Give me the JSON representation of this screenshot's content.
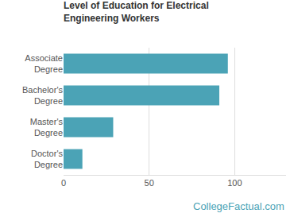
{
  "chart_data": {
    "type": "bar",
    "orientation": "horizontal",
    "title": "Level of Education for Electrical Engineering Workers",
    "categories": [
      "Associate Degree",
      "Bachelor's Degree",
      "Master's Degree",
      "Doctor's Degree"
    ],
    "values": [
      96,
      91,
      29,
      11
    ],
    "color": "#4ba3b6",
    "xlim": [
      0,
      130
    ],
    "xticks": [
      0,
      50,
      100
    ],
    "grid": true,
    "annotation": "CollegeFactual.com"
  }
}
